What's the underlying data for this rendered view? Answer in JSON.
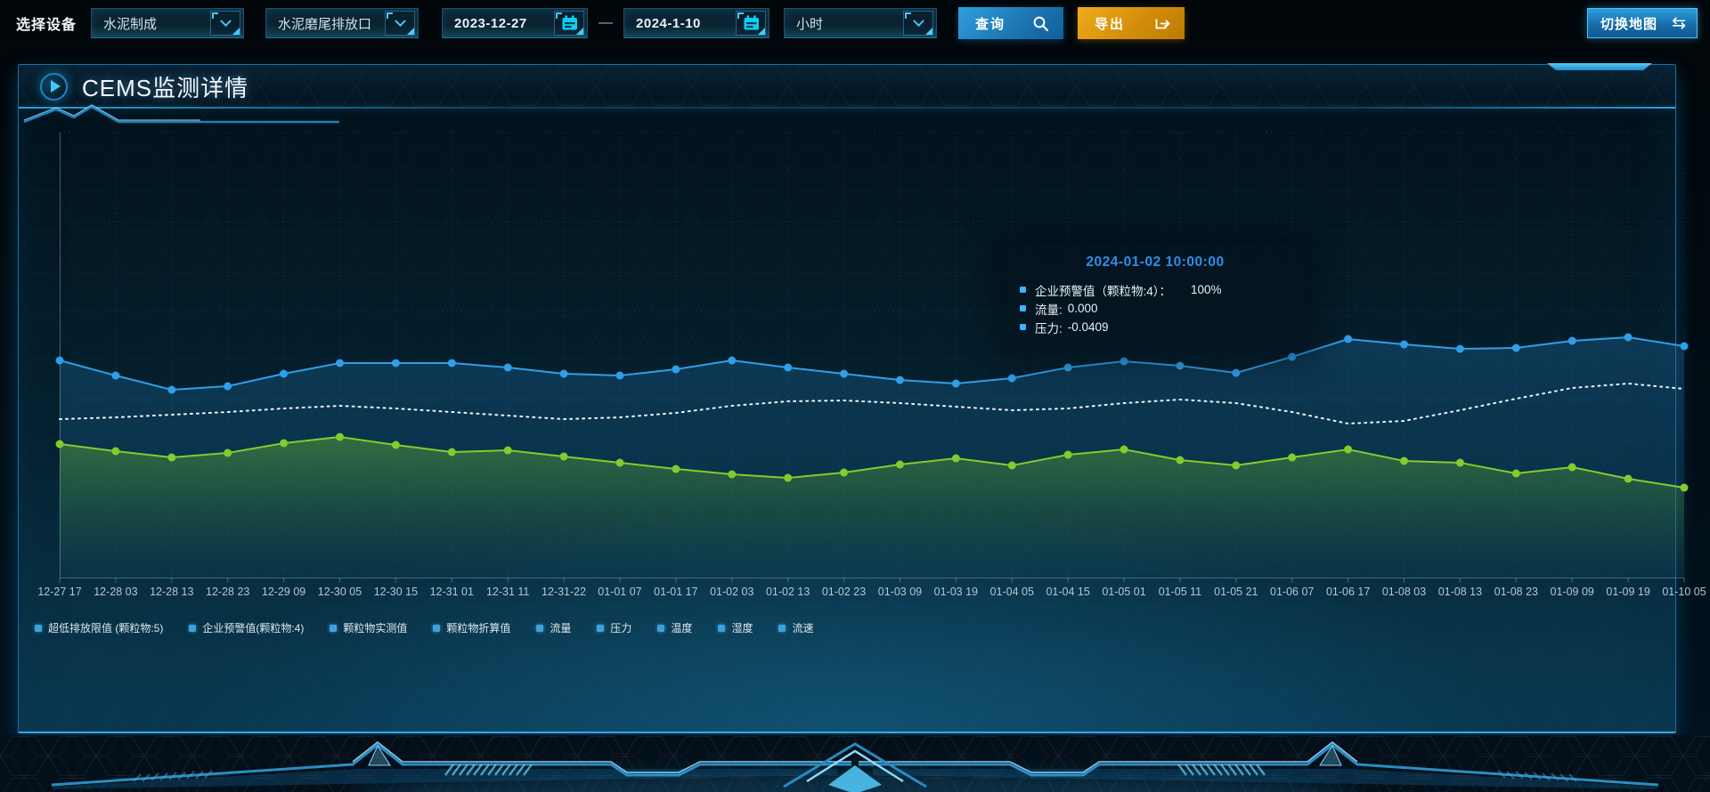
{
  "toolbar": {
    "device_label": "选择设备",
    "device_select": {
      "value": "水泥制成"
    },
    "outlet_select": {
      "value": "水泥磨尾排放口"
    },
    "date_start": "2023-12-27",
    "date_separator": "—",
    "date_end": "2024-1-10",
    "interval_select": {
      "value": "小时"
    },
    "query_label": "查询",
    "export_label": "导出",
    "switch_map_label": "切换地图",
    "switch_map_icon": "⇆",
    "accent_blue": "#1e8fd5",
    "accent_orange": "#d08c09"
  },
  "panel": {
    "title": "CEMS监测详情"
  },
  "tooltip": {
    "title": "2024-01-02 10:00:00",
    "title_color": "#2f8fe8",
    "marker_color": "#38b6ff",
    "rows": [
      {
        "label": "企业预警值（颗粒物:4）：",
        "value": "100%"
      },
      {
        "label": "流量:",
        "value": "0.000"
      },
      {
        "label": "压力:",
        "value": "-0.0409"
      }
    ]
  },
  "legend": {
    "marker_color": "#3ba2dd",
    "items": [
      "超低排放限值 (颗粒物:5)",
      "企业预警值(颗粒物:4)",
      "颗粒物实测值",
      "颗粒物折算值",
      "流量",
      "压力",
      "温度",
      "湿度",
      "流速"
    ]
  },
  "chart_data": {
    "type": "line",
    "title": "",
    "xlabel": "",
    "ylabel": "",
    "ylim": [
      0,
      100
    ],
    "grid": true,
    "legend_position": "bottom",
    "x": [
      "12-27 17",
      "12-28 03",
      "12-28 13",
      "12-28 23",
      "12-29 09",
      "12-30 05",
      "12-30 15",
      "12-31 01",
      "12-31 11",
      "12-31-22",
      "01-01 07",
      "01-01 17",
      "01-02 03",
      "01-02 13",
      "01-02 23",
      "01-03 09",
      "01-03 19",
      "01-04 05",
      "01-04 15",
      "01-05 01",
      "01-05 11",
      "01-05 21",
      "01-06 07",
      "01-06 17",
      "01-08 03",
      "01-08 13",
      "01-08 23",
      "01-09 09",
      "01-09 19",
      "01-10 05"
    ],
    "series": [
      {
        "name": "企业预警值(颗粒物:4)",
        "color": "#2e9fe8",
        "line_style": "solid",
        "markers": true,
        "area_from": "rgba(32,118,176,0.32)",
        "area_to": "rgba(10,58,92,0.28)",
        "values": [
          48.8,
          45.4,
          42.2,
          43,
          45.8,
          48.2,
          48.2,
          48.2,
          47.2,
          45.8,
          45.4,
          46.8,
          48.8,
          47.2,
          45.8,
          44.4,
          43.6,
          44.8,
          47.2,
          48.6,
          47.6,
          46,
          49.6,
          53.6,
          52.4,
          51.4,
          51.6,
          53.2,
          54,
          52
        ]
      },
      {
        "name": "流量",
        "color": "#edf5f8",
        "line_style": "dotted",
        "markers": false,
        "area_from": "",
        "area_to": "",
        "values": [
          35.6,
          36,
          36.6,
          37.2,
          38,
          38.6,
          38,
          37.2,
          36.4,
          35.6,
          36,
          37,
          38.6,
          39.6,
          39.8,
          39.2,
          38.4,
          37.6,
          38,
          39.2,
          40,
          39.2,
          37.2,
          34.6,
          35.2,
          37.6,
          40.2,
          42.6,
          43.6,
          42.4
        ]
      },
      {
        "name": "压力",
        "color": "#80cd2e",
        "line_style": "solid",
        "markers": true,
        "area_from": "rgba(118,204,44,0.38)",
        "area_to": "rgba(70,140,40,0.02)",
        "values": [
          30,
          28.4,
          27,
          28,
          30.2,
          31.6,
          29.8,
          28.2,
          28.6,
          27.2,
          25.8,
          24.4,
          23.2,
          22.4,
          23.6,
          25.4,
          26.8,
          25.2,
          27.6,
          28.8,
          26.4,
          25.2,
          27,
          28.8,
          26.2,
          25.8,
          23.4,
          24.8,
          22.2,
          20.2
        ]
      }
    ]
  }
}
